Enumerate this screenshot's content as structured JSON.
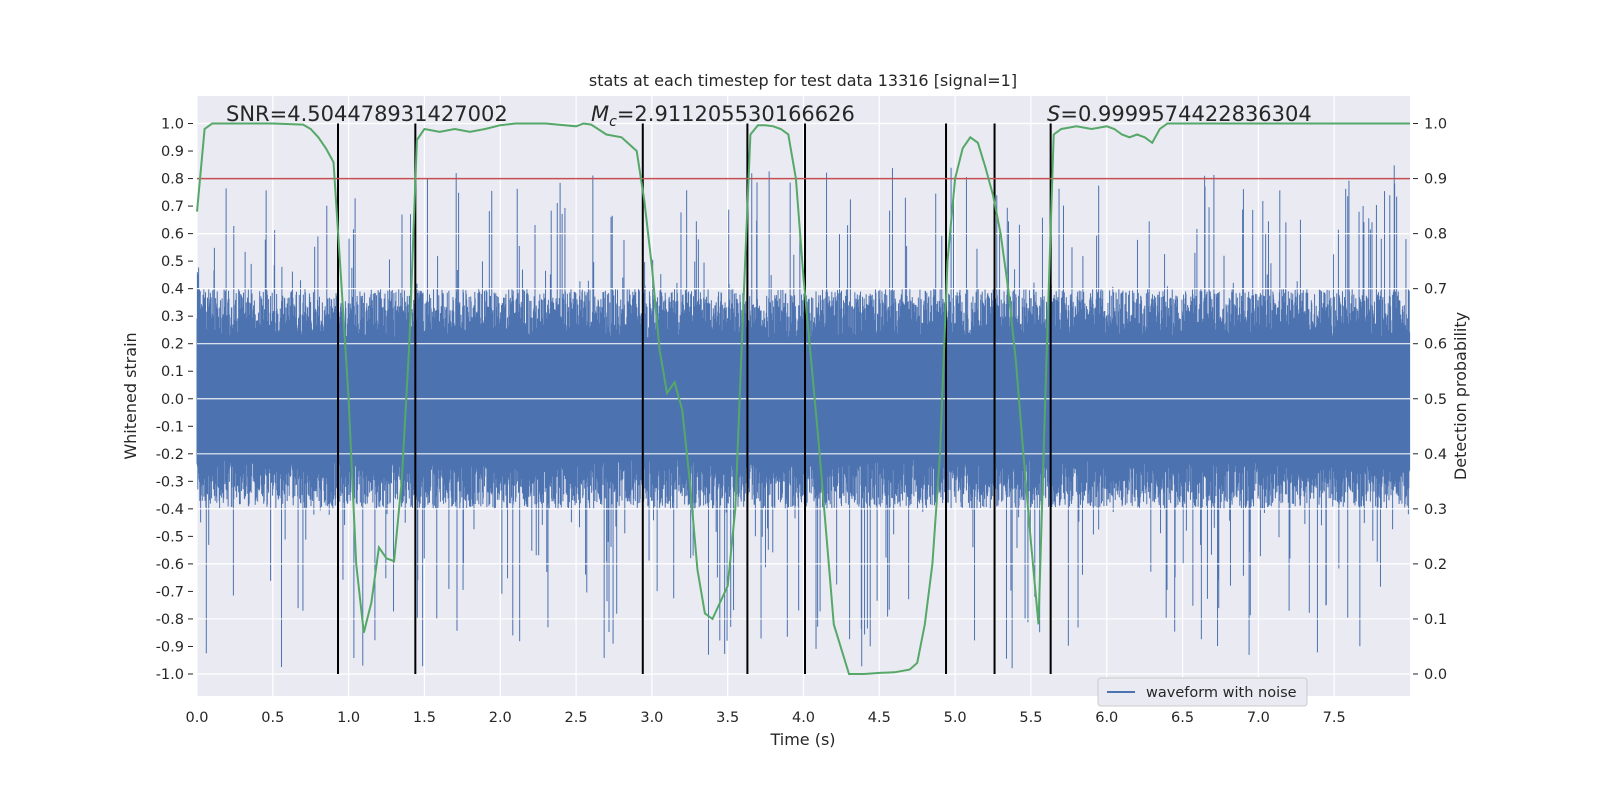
{
  "chart_data": {
    "type": "line",
    "title": "stats at each timestep for test data 13316 [signal=1]",
    "xlabel": "Time (s)",
    "ylabel": "Whitened strain",
    "y2label": "Detection probability",
    "xlim": [
      0.0,
      8.0
    ],
    "ylim": [
      -1.08,
      1.1
    ],
    "y2lim": [
      -0.04,
      1.05
    ],
    "xticks": [
      "0.0",
      "0.5",
      "1.0",
      "1.5",
      "2.0",
      "2.5",
      "3.0",
      "3.5",
      "4.0",
      "4.5",
      "5.0",
      "5.5",
      "6.0",
      "6.5",
      "7.0",
      "7.5"
    ],
    "yticks": [
      "1.0",
      "0.9",
      "0.8",
      "0.7",
      "0.6",
      "0.5",
      "0.4",
      "0.3",
      "0.2",
      "0.1",
      "0.0",
      "-0.1",
      "-0.2",
      "-0.3",
      "-0.4",
      "-0.5",
      "-0.6",
      "-0.7",
      "-0.8",
      "-0.9",
      "-1.0"
    ],
    "y2ticks": [
      "1.0",
      "0.9",
      "0.8",
      "0.7",
      "0.6",
      "0.5",
      "0.4",
      "0.3",
      "0.2",
      "0.1",
      "0.0"
    ],
    "grid": true,
    "legend_position": "lower-right",
    "annotations": {
      "snr": "SNR=4.504478931427002",
      "mc_symbol": "M",
      "mc_sub": "c",
      "mc_value": "=2.911205530166626",
      "s_symbol": "S",
      "s_value": "=0.9999574422836304"
    },
    "series": [
      {
        "name": "waveform with noise",
        "color": "#4c72b0",
        "description": "dense whitened strain noise, core band roughly -0.4 to 0.4 with spikes to about ±0.85",
        "envelope": {
          "core": 0.4,
          "max_spike_pos": 0.85,
          "max_spike_neg": -0.98
        }
      },
      {
        "color": "#55a868",
        "axis": "right",
        "x": [
          0.0,
          0.05,
          0.1,
          0.2,
          0.3,
          0.5,
          0.7,
          0.75,
          0.8,
          0.85,
          0.9,
          0.95,
          1.0,
          1.05,
          1.1,
          1.15,
          1.2,
          1.25,
          1.3,
          1.35,
          1.4,
          1.45,
          1.5,
          1.6,
          1.7,
          1.8,
          1.9,
          2.0,
          2.1,
          2.3,
          2.5,
          2.55,
          2.6,
          2.7,
          2.8,
          2.9,
          2.95,
          3.0,
          3.05,
          3.1,
          3.15,
          3.2,
          3.25,
          3.3,
          3.35,
          3.4,
          3.5,
          3.55,
          3.6,
          3.65,
          3.7,
          3.75,
          3.8,
          3.85,
          3.9,
          3.95,
          4.0,
          4.1,
          4.2,
          4.3,
          4.35,
          4.4,
          4.5,
          4.6,
          4.7,
          4.75,
          4.8,
          4.85,
          4.9,
          4.95,
          5.0,
          5.05,
          5.1,
          5.15,
          5.2,
          5.25,
          5.3,
          5.35,
          5.4,
          5.45,
          5.5,
          5.55,
          5.6,
          5.65,
          5.7,
          5.8,
          5.9,
          6.0,
          6.05,
          6.1,
          6.15,
          6.2,
          6.25,
          6.3,
          6.35,
          6.4,
          6.45,
          6.5,
          6.6,
          6.8,
          7.0,
          7.2,
          7.5,
          7.8,
          8.0
        ],
        "values": [
          0.84,
          0.99,
          1.0,
          1.0,
          1.0,
          1.0,
          0.998,
          0.99,
          0.975,
          0.955,
          0.93,
          0.72,
          0.5,
          0.2,
          0.075,
          0.13,
          0.23,
          0.21,
          0.205,
          0.35,
          0.6,
          0.97,
          0.99,
          0.985,
          0.99,
          0.985,
          0.99,
          0.997,
          1.0,
          1.0,
          0.995,
          1.0,
          0.998,
          0.98,
          0.975,
          0.95,
          0.86,
          0.74,
          0.59,
          0.51,
          0.53,
          0.48,
          0.35,
          0.19,
          0.11,
          0.1,
          0.16,
          0.3,
          0.65,
          0.98,
          0.997,
          0.997,
          0.995,
          0.99,
          0.98,
          0.9,
          0.72,
          0.42,
          0.09,
          0.0,
          0.0,
          0.0,
          0.002,
          0.003,
          0.008,
          0.02,
          0.09,
          0.2,
          0.4,
          0.75,
          0.9,
          0.955,
          0.975,
          0.965,
          0.92,
          0.87,
          0.8,
          0.7,
          0.57,
          0.4,
          0.24,
          0.09,
          0.55,
          0.98,
          0.99,
          0.995,
          0.99,
          0.995,
          0.99,
          0.98,
          0.975,
          0.98,
          0.975,
          0.965,
          0.99,
          1.0,
          1.0,
          1.0,
          1.0,
          1.0,
          1.0,
          1.0,
          1.0,
          1.0,
          1.0
        ]
      }
    ],
    "threshold": {
      "axis": "right",
      "value": 0.9,
      "color": "#c44e52"
    },
    "vlines": {
      "color": "#000000",
      "x": [
        0.93,
        1.44,
        2.94,
        3.63,
        4.01,
        4.94,
        5.26,
        5.63
      ],
      "y2_range": [
        0.0,
        1.0
      ]
    }
  }
}
